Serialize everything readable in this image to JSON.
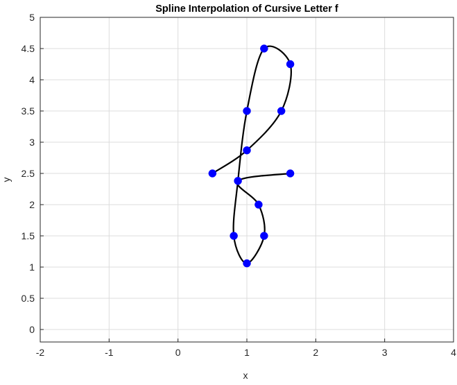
{
  "chart_data": {
    "type": "line",
    "title": "Spline Interpolation of Cursive Letter f",
    "xlabel": "x",
    "ylabel": "y",
    "xlim": [
      -2,
      4
    ],
    "ylim": [
      -0.2,
      5
    ],
    "grid": true,
    "x_ticks": [
      "-2",
      "-1",
      "0",
      "1",
      "2",
      "3",
      "4"
    ],
    "y_ticks": [
      "0",
      "0.5",
      "1",
      "1.5",
      "2",
      "2.5",
      "3",
      "3.5",
      "4",
      "4.5",
      "5"
    ],
    "x_tick_values": [
      -2,
      -1,
      0,
      1,
      2,
      3,
      4
    ],
    "y_tick_values": [
      0,
      0.5,
      1,
      1.5,
      2,
      2.5,
      3,
      3.5,
      4,
      4.5,
      5
    ],
    "series": [
      {
        "kind": "spline-curve",
        "color": "#000000",
        "points": [
          [
            0.5,
            2.5
          ],
          [
            1.0,
            2.87
          ],
          [
            1.5,
            3.5
          ],
          [
            1.63,
            4.25
          ],
          [
            1.25,
            4.5
          ],
          [
            1.0,
            3.5
          ],
          [
            0.87,
            2.38
          ],
          [
            0.81,
            1.5
          ],
          [
            1.0,
            1.06
          ],
          [
            1.25,
            1.5
          ],
          [
            1.17,
            2.0
          ],
          [
            0.87,
            2.38
          ],
          [
            1.63,
            2.5
          ]
        ]
      },
      {
        "kind": "markers",
        "color": "#0000ff",
        "points": [
          [
            0.5,
            2.5
          ],
          [
            1.0,
            2.87
          ],
          [
            1.5,
            3.5
          ],
          [
            1.63,
            4.25
          ],
          [
            1.25,
            4.5
          ],
          [
            1.0,
            3.5
          ],
          [
            0.87,
            2.38
          ],
          [
            0.81,
            1.5
          ],
          [
            1.0,
            1.06
          ],
          [
            1.25,
            1.5
          ],
          [
            1.17,
            2.0
          ],
          [
            1.63,
            2.5
          ]
        ]
      }
    ]
  }
}
